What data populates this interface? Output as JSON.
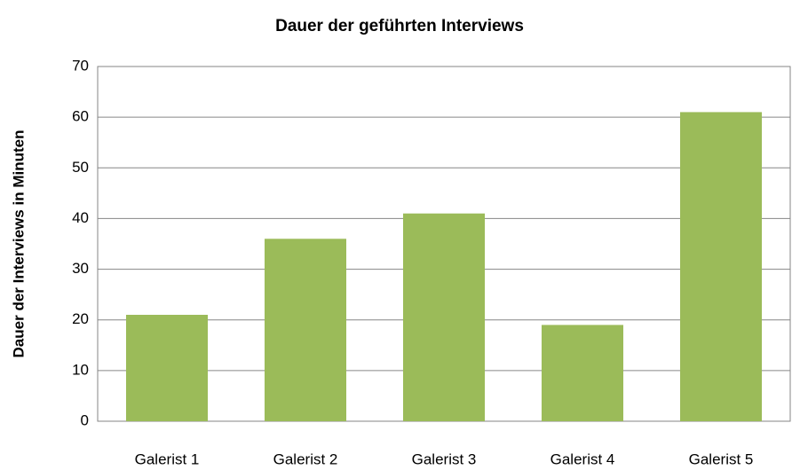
{
  "chart_data": {
    "type": "bar",
    "title": "Dauer der geführten Interviews",
    "y_label": "Dauer der Interviews in Minuten",
    "categories": [
      "Galerist 1",
      "Galerist 2",
      "Galerist 3",
      "Galerist 4",
      "Galerist 5"
    ],
    "values": [
      21,
      36,
      41,
      19,
      61
    ],
    "color": "#9bbb59",
    "ylim": [
      0,
      70
    ],
    "yticks": [
      0,
      10,
      20,
      30,
      40,
      50,
      60,
      70
    ],
    "grid": true
  }
}
